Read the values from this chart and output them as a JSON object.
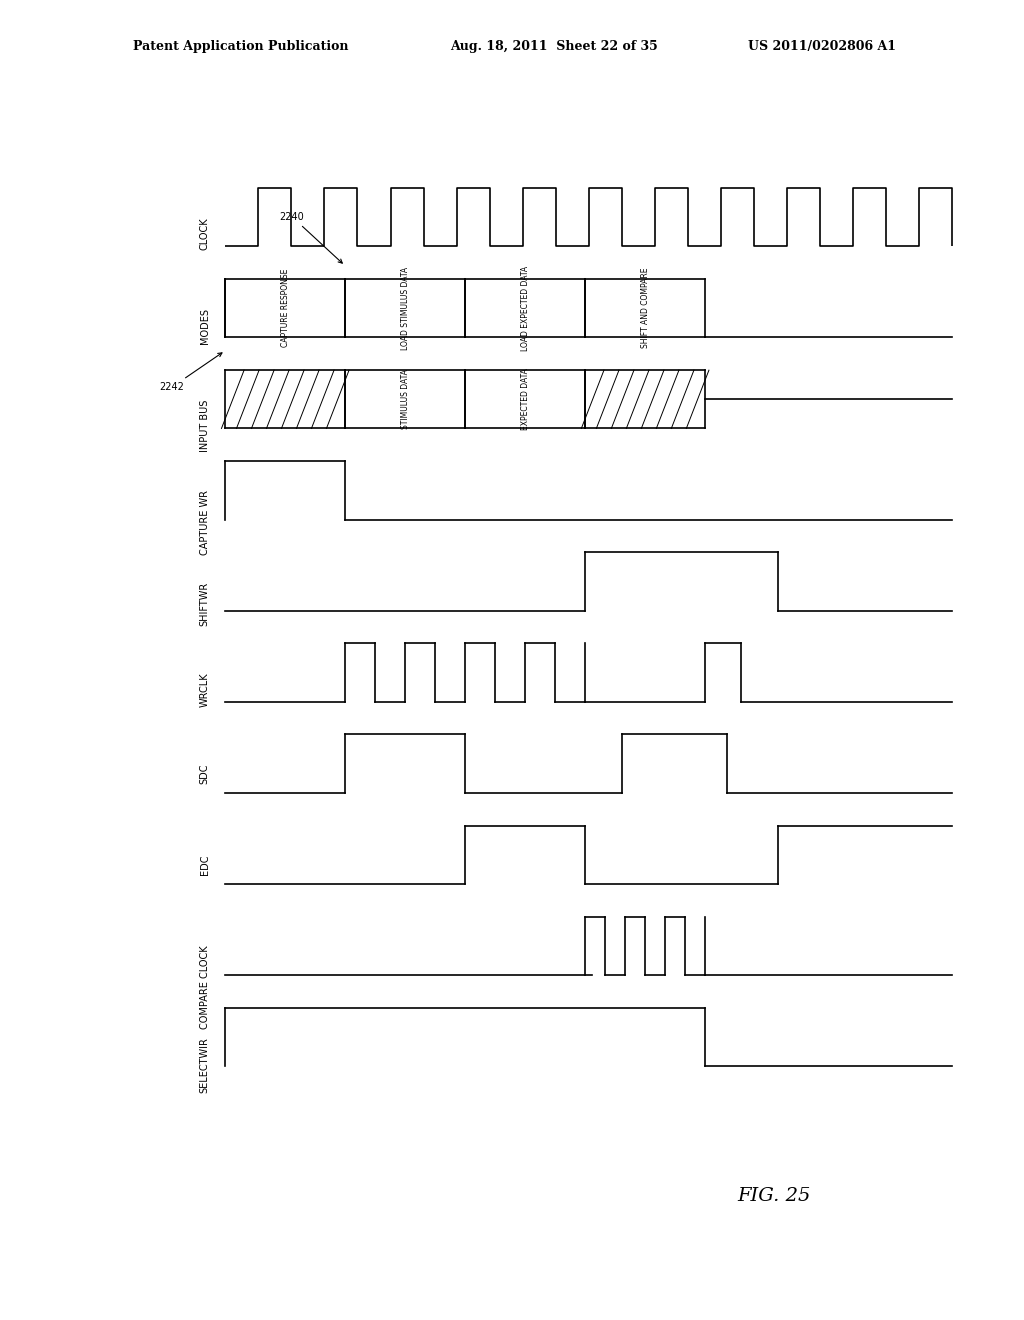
{
  "title_line1": "Patent Application Publication",
  "title_line2": "Aug. 18, 2011  Sheet 22 of 35",
  "title_line3": "US 2011/0202806 A1",
  "fig_label": "FIG. 25",
  "signals": [
    "CLOCK",
    "MODES",
    "INPUT BUS",
    "CAPTURE WR",
    "SHIFTWR",
    "WRCLK",
    "SDC",
    "EDC",
    "COMPARE CLOCK",
    "SELECTWIR"
  ],
  "annotation_2240": "2240",
  "annotation_2242": "2242",
  "background_color": "#ffffff"
}
